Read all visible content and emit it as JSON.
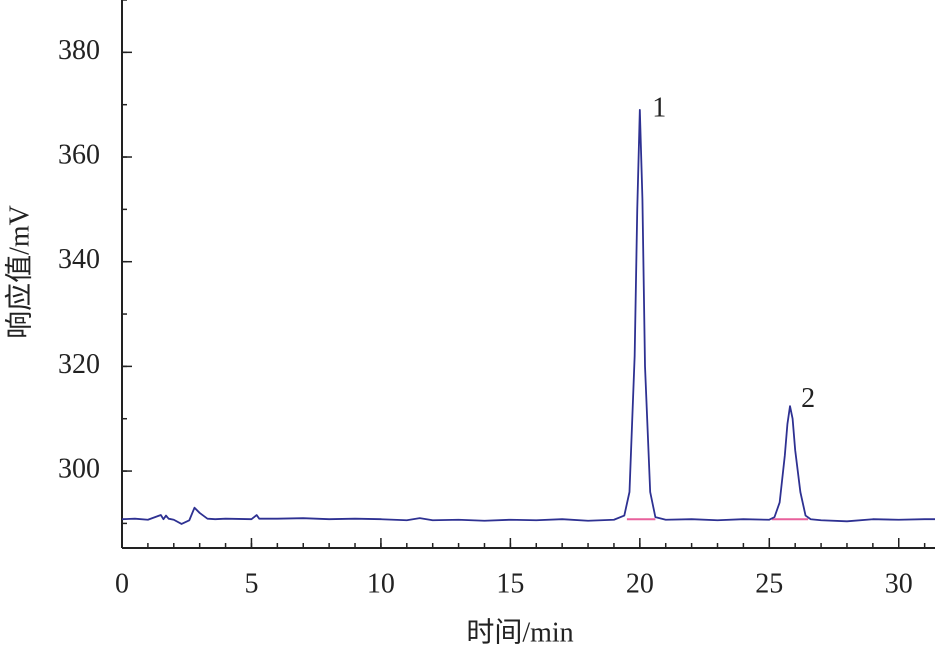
{
  "chart_data": {
    "type": "line",
    "x_label": "时间/min",
    "y_label": "响应值/mV",
    "xlim": [
      0,
      31.4
    ],
    "ylim": [
      285.3,
      390
    ],
    "xticks": [
      0,
      5,
      10,
      15,
      20,
      25,
      30
    ],
    "yticks": [
      300,
      320,
      340,
      360,
      380
    ],
    "xminorstep": 1,
    "yminorstep": 10,
    "grid": false,
    "series": [
      {
        "color": "#2e3192",
        "x": [
          0,
          0.5,
          1,
          1.5,
          1.6,
          1.7,
          1.8,
          2.0,
          2.3,
          2.6,
          2.8,
          3.0,
          3.3,
          3.6,
          4,
          5,
          5.2,
          5.3,
          6,
          7,
          8,
          9,
          10,
          11,
          11.5,
          12,
          13,
          14,
          15,
          16,
          17,
          18,
          19,
          19.4,
          19.6,
          19.8,
          19.9,
          20.0,
          20.1,
          20.2,
          20.4,
          20.6,
          21,
          22,
          23,
          24,
          25,
          25.2,
          25.4,
          25.6,
          25.7,
          25.8,
          25.9,
          26.0,
          26.2,
          26.4,
          26.6,
          27,
          28,
          29,
          30,
          31,
          31.4
        ],
        "values": [
          290.8,
          290.9,
          290.7,
          291.6,
          290.8,
          291.5,
          290.9,
          290.7,
          289.9,
          290.6,
          293.0,
          292.0,
          290.9,
          290.8,
          290.9,
          290.8,
          291.6,
          290.9,
          290.9,
          291.0,
          290.8,
          290.9,
          290.8,
          290.6,
          291.0,
          290.6,
          290.7,
          290.5,
          290.7,
          290.6,
          290.8,
          290.5,
          290.7,
          291.5,
          296,
          322,
          350,
          369,
          352,
          320,
          296,
          291.2,
          290.7,
          290.8,
          290.6,
          290.8,
          290.7,
          291.2,
          294,
          303,
          309,
          312.4,
          310,
          304,
          296,
          291.5,
          290.8,
          290.6,
          290.4,
          290.8,
          290.7,
          290.8,
          290.8
        ]
      }
    ],
    "baselines": [
      {
        "color": "#e8609c",
        "x": [
          19.5,
          20.6
        ],
        "values": [
          290.8,
          290.8
        ]
      },
      {
        "color": "#e8609c",
        "x": [
          25.1,
          26.5
        ],
        "values": [
          290.8,
          290.8
        ]
      }
    ],
    "annotations": [
      {
        "text": "1",
        "x": 20.75,
        "y": 369
      },
      {
        "text": "2",
        "x": 26.5,
        "y": 313.5
      }
    ]
  }
}
